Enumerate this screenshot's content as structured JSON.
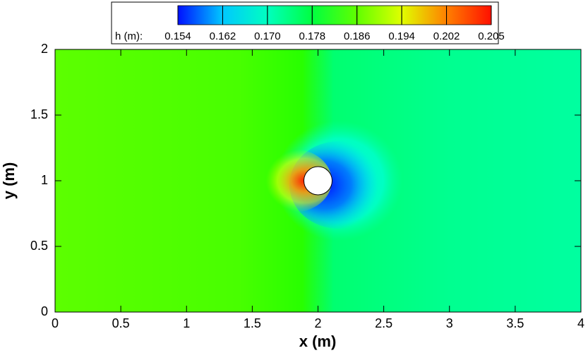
{
  "chart_data": {
    "type": "contour",
    "xlabel": "x (m)",
    "ylabel": "y (m)",
    "xlim": [
      0,
      4
    ],
    "ylim": [
      0,
      2
    ],
    "xticks": [
      0,
      0.5,
      1,
      1.5,
      2,
      2.5,
      3,
      3.5,
      4
    ],
    "yticks": [
      0,
      0.5,
      1,
      1.5,
      2
    ],
    "colorbar": {
      "label": "h (m):",
      "levels": [
        0.154,
        0.162,
        0.17,
        0.178,
        0.186,
        0.194,
        0.202,
        0.205
      ],
      "level_labels": [
        "0.154",
        "0.162",
        "0.170",
        "0.178",
        "0.186",
        "0.194",
        "0.202",
        "0.205"
      ],
      "colors": [
        "#0010ff",
        "#00c8ff",
        "#00ffc0",
        "#00ff40",
        "#60ff00",
        "#e0ff00",
        "#ff8000",
        "#ff1000"
      ]
    }
  }
}
